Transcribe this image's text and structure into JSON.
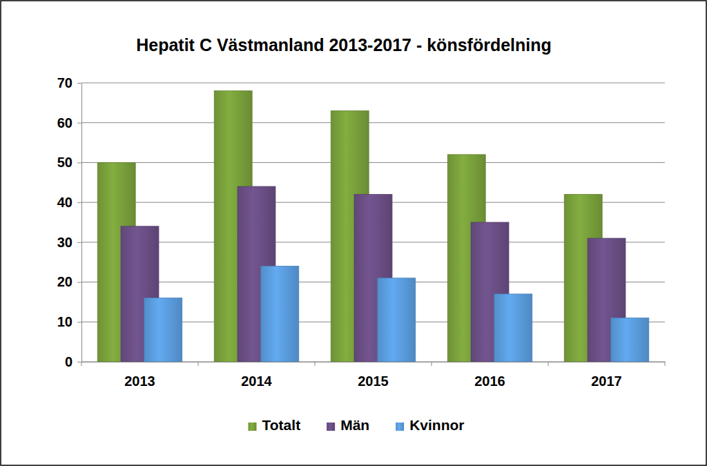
{
  "chart_data": {
    "type": "bar",
    "title": "Hepatit C Västmanland 2013-2017 - könsfördelning",
    "categories": [
      "2013",
      "2014",
      "2015",
      "2016",
      "2017"
    ],
    "series": [
      {
        "name": "Totalt",
        "color": "#7aa23c",
        "values": [
          50,
          68,
          63,
          52,
          42
        ]
      },
      {
        "name": "Män",
        "color": "#6b4f86",
        "values": [
          34,
          44,
          42,
          35,
          31
        ]
      },
      {
        "name": "Kvinnor",
        "color": "#5b9ee0",
        "values": [
          16,
          24,
          21,
          17,
          11
        ]
      }
    ],
    "ylim": [
      0,
      70
    ],
    "yticks": [
      0,
      10,
      20,
      30,
      40,
      50,
      60,
      70
    ],
    "grid": true,
    "legend": "bottom"
  }
}
